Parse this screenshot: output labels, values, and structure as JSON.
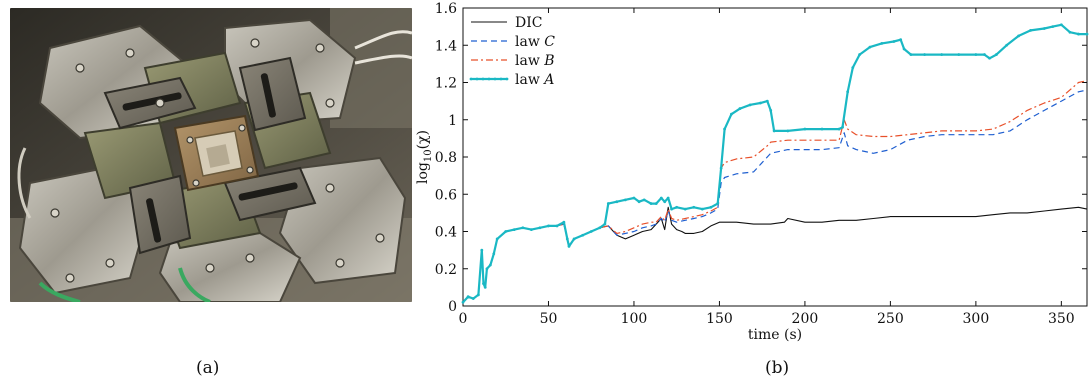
{
  "captions": {
    "left": "(a)",
    "right": "(b)"
  },
  "photo": {
    "description_icon": "biaxial-test-machine-photo"
  },
  "chart_data": {
    "type": "line",
    "xlabel": "time (s)",
    "ylabel": "log10(χ)",
    "ylabel_parts": {
      "main": "log",
      "sub": "10",
      "arg": "(χ)"
    },
    "xlim": [
      0,
      365
    ],
    "ylim": [
      0,
      1.6
    ],
    "xticks": [
      0,
      50,
      100,
      150,
      200,
      250,
      300,
      350
    ],
    "yticks": [
      0,
      0.2,
      0.4,
      0.6,
      0.8,
      1,
      1.2,
      1.4,
      1.6
    ],
    "ytick_labels": [
      "0",
      "0.2",
      "0.4",
      "0.6",
      "0.8",
      "1",
      "1.2",
      "1.4",
      "1.6"
    ],
    "legend_position": "top-left",
    "series": [
      {
        "name": "DIC",
        "label_text": "DIC",
        "label_var": "",
        "color": "#111111",
        "dash": "solid",
        "width": 1.1,
        "markers": false,
        "x": [
          0,
          3,
          6,
          9,
          11,
          12,
          13,
          14,
          16,
          18,
          20,
          25,
          30,
          35,
          40,
          45,
          50,
          55,
          59,
          61,
          62,
          65,
          70,
          75,
          80,
          85,
          90,
          95,
          100,
          105,
          110,
          113,
          116,
          118,
          120,
          122,
          125,
          128,
          130,
          135,
          140,
          145,
          150,
          160,
          170,
          180,
          188,
          190,
          200,
          210,
          220,
          230,
          240,
          250,
          260,
          270,
          280,
          290,
          300,
          310,
          320,
          330,
          340,
          350,
          360,
          365
        ],
        "y": [
          0.02,
          0.05,
          0.04,
          0.06,
          0.3,
          0.12,
          0.1,
          0.2,
          0.22,
          0.28,
          0.36,
          0.4,
          0.41,
          0.42,
          0.41,
          0.42,
          0.43,
          0.43,
          0.44,
          0.36,
          0.32,
          0.36,
          0.38,
          0.4,
          0.42,
          0.43,
          0.38,
          0.36,
          0.38,
          0.4,
          0.41,
          0.44,
          0.47,
          0.41,
          0.53,
          0.44,
          0.41,
          0.4,
          0.39,
          0.39,
          0.4,
          0.43,
          0.45,
          0.45,
          0.44,
          0.44,
          0.45,
          0.47,
          0.45,
          0.45,
          0.46,
          0.46,
          0.47,
          0.48,
          0.48,
          0.48,
          0.48,
          0.48,
          0.48,
          0.49,
          0.5,
          0.5,
          0.51,
          0.52,
          0.53,
          0.52
        ]
      },
      {
        "name": "law C",
        "label_text": "law ",
        "label_var": "C",
        "color": "#1f5fd0",
        "dash": "6,4",
        "width": 1.2,
        "markers": false,
        "x": [
          0,
          3,
          6,
          9,
          11,
          12,
          13,
          14,
          16,
          18,
          20,
          25,
          30,
          35,
          40,
          45,
          50,
          55,
          59,
          61,
          62,
          65,
          70,
          75,
          80,
          85,
          90,
          95,
          100,
          105,
          110,
          113,
          116,
          118,
          120,
          122,
          125,
          130,
          135,
          140,
          145,
          149,
          151,
          153,
          160,
          170,
          178,
          180,
          190,
          200,
          210,
          220,
          223,
          225,
          230,
          240,
          250,
          260,
          270,
          280,
          290,
          300,
          310,
          320,
          330,
          340,
          350,
          360,
          365
        ],
        "y": [
          0.02,
          0.05,
          0.04,
          0.06,
          0.3,
          0.12,
          0.1,
          0.2,
          0.22,
          0.28,
          0.36,
          0.4,
          0.41,
          0.42,
          0.41,
          0.42,
          0.43,
          0.43,
          0.44,
          0.36,
          0.32,
          0.36,
          0.38,
          0.4,
          0.42,
          0.43,
          0.38,
          0.39,
          0.4,
          0.42,
          0.43,
          0.44,
          0.47,
          0.45,
          0.51,
          0.46,
          0.45,
          0.46,
          0.47,
          0.48,
          0.5,
          0.52,
          0.66,
          0.69,
          0.71,
          0.72,
          0.8,
          0.82,
          0.84,
          0.84,
          0.84,
          0.85,
          0.93,
          0.86,
          0.84,
          0.82,
          0.84,
          0.89,
          0.91,
          0.92,
          0.92,
          0.92,
          0.92,
          0.94,
          1.0,
          1.05,
          1.1,
          1.15,
          1.16
        ]
      },
      {
        "name": "law B",
        "label_text": "law ",
        "label_var": "B",
        "color": "#e8502a",
        "dash": "7,3,2,3",
        "width": 1.2,
        "markers": false,
        "x": [
          0,
          3,
          6,
          9,
          11,
          12,
          13,
          14,
          16,
          18,
          20,
          25,
          30,
          35,
          40,
          45,
          50,
          55,
          59,
          61,
          62,
          65,
          70,
          75,
          80,
          85,
          90,
          95,
          100,
          105,
          110,
          113,
          116,
          118,
          120,
          122,
          125,
          130,
          135,
          140,
          145,
          149,
          151,
          153,
          160,
          170,
          178,
          180,
          190,
          200,
          210,
          220,
          223,
          225,
          230,
          240,
          250,
          260,
          270,
          280,
          290,
          300,
          310,
          320,
          330,
          340,
          350,
          360,
          365
        ],
        "y": [
          0.02,
          0.05,
          0.04,
          0.06,
          0.3,
          0.12,
          0.1,
          0.2,
          0.22,
          0.28,
          0.36,
          0.4,
          0.41,
          0.42,
          0.41,
          0.42,
          0.43,
          0.43,
          0.44,
          0.36,
          0.32,
          0.36,
          0.38,
          0.4,
          0.42,
          0.43,
          0.39,
          0.4,
          0.42,
          0.44,
          0.45,
          0.45,
          0.48,
          0.46,
          0.52,
          0.47,
          0.46,
          0.47,
          0.48,
          0.49,
          0.51,
          0.53,
          0.74,
          0.77,
          0.79,
          0.8,
          0.86,
          0.88,
          0.89,
          0.89,
          0.89,
          0.89,
          1.0,
          0.95,
          0.92,
          0.91,
          0.91,
          0.92,
          0.93,
          0.94,
          0.94,
          0.94,
          0.95,
          0.99,
          1.05,
          1.09,
          1.12,
          1.2,
          1.21
        ]
      },
      {
        "name": "law A",
        "label_text": "law ",
        "label_var": "A",
        "color": "#1ab8c4",
        "dash": "solid",
        "width": 2.2,
        "markers": true,
        "x": [
          0,
          3,
          6,
          9,
          11,
          12,
          13,
          14,
          16,
          18,
          20,
          25,
          30,
          35,
          40,
          45,
          50,
          55,
          59,
          61,
          62,
          65,
          70,
          75,
          80,
          83,
          85,
          90,
          95,
          100,
          103,
          106,
          110,
          113,
          116,
          118,
          120,
          122,
          125,
          130,
          135,
          140,
          145,
          149,
          151,
          153,
          157,
          162,
          168,
          174,
          178,
          180,
          182,
          190,
          200,
          210,
          220,
          222,
          225,
          228,
          232,
          238,
          245,
          252,
          256,
          258,
          262,
          270,
          280,
          290,
          300,
          305,
          308,
          312,
          318,
          325,
          332,
          340,
          345,
          350,
          355,
          360,
          365
        ],
        "y": [
          0.02,
          0.05,
          0.04,
          0.06,
          0.3,
          0.12,
          0.1,
          0.2,
          0.22,
          0.28,
          0.36,
          0.4,
          0.41,
          0.42,
          0.41,
          0.42,
          0.43,
          0.43,
          0.45,
          0.36,
          0.32,
          0.36,
          0.38,
          0.4,
          0.42,
          0.44,
          0.55,
          0.56,
          0.57,
          0.58,
          0.56,
          0.57,
          0.55,
          0.55,
          0.58,
          0.56,
          0.58,
          0.52,
          0.53,
          0.52,
          0.53,
          0.52,
          0.53,
          0.55,
          0.74,
          0.95,
          1.03,
          1.06,
          1.08,
          1.09,
          1.1,
          1.05,
          0.94,
          0.94,
          0.95,
          0.95,
          0.95,
          0.96,
          1.15,
          1.28,
          1.35,
          1.39,
          1.41,
          1.42,
          1.43,
          1.38,
          1.35,
          1.35,
          1.35,
          1.35,
          1.35,
          1.35,
          1.33,
          1.35,
          1.4,
          1.45,
          1.48,
          1.49,
          1.5,
          1.51,
          1.47,
          1.46,
          1.46
        ]
      }
    ]
  }
}
